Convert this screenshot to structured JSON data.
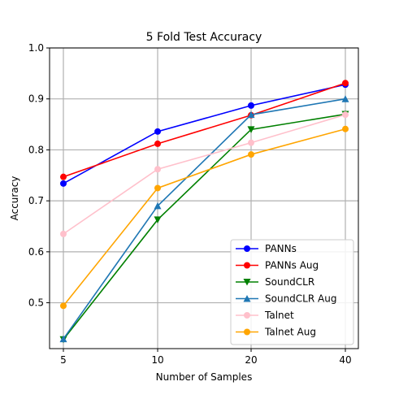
{
  "chart_data": {
    "type": "line",
    "title": "5 Fold Test Accuracy",
    "xlabel": "Number of Samples",
    "ylabel": "Accuracy",
    "categories": [
      "5",
      "10",
      "20",
      "40"
    ],
    "yticks": [
      "0.5",
      "0.6",
      "0.7",
      "0.8",
      "0.9",
      "1.0"
    ],
    "ylim": [
      0.41,
      1.0
    ],
    "grid": true,
    "legend_position": "lower-right",
    "series": [
      {
        "name": "PANNs",
        "color": "#0000ff",
        "marker": "circle",
        "values": [
          0.734,
          0.836,
          0.887,
          0.928
        ]
      },
      {
        "name": "PANNs Aug",
        "color": "#ff0000",
        "marker": "circle",
        "values": [
          0.747,
          0.812,
          0.868,
          0.931
        ]
      },
      {
        "name": "SoundCLR",
        "color": "#008000",
        "marker": "triangle-down",
        "values": [
          0.428,
          0.663,
          0.84,
          0.87
        ]
      },
      {
        "name": "SoundCLR Aug",
        "color": "#1f77b4",
        "marker": "triangle-up",
        "values": [
          0.429,
          0.69,
          0.869,
          0.9
        ]
      },
      {
        "name": "Talnet",
        "color": "#ffc0cb",
        "marker": "circle",
        "values": [
          0.635,
          0.762,
          0.814,
          0.869
        ]
      },
      {
        "name": "Talnet Aug",
        "color": "#ffa500",
        "marker": "circle",
        "values": [
          0.494,
          0.725,
          0.791,
          0.841
        ]
      }
    ]
  }
}
